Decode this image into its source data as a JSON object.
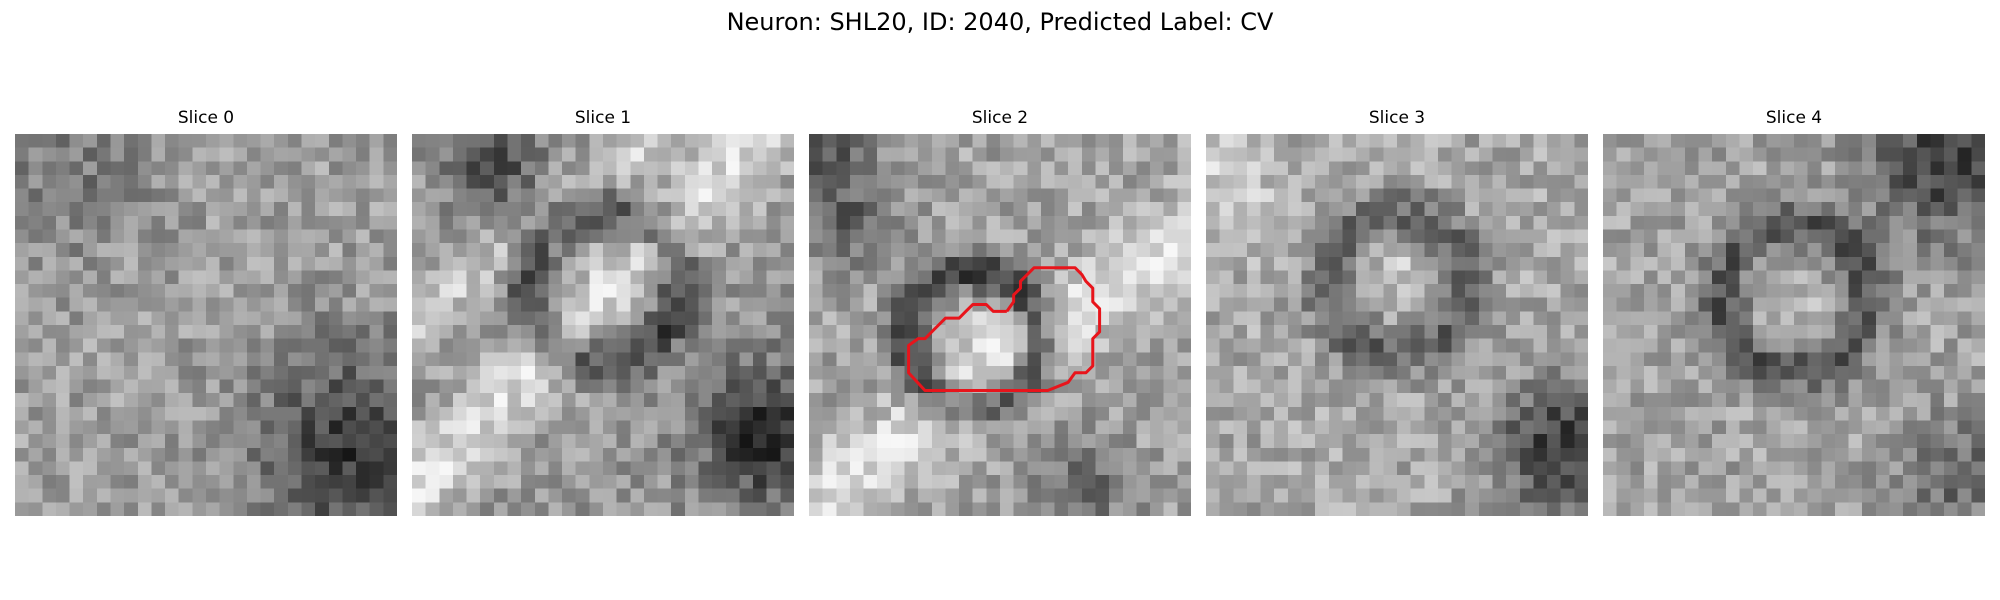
{
  "figure": {
    "title": "Neuron: SHL20, ID: 2040, Predicted Label: CV"
  },
  "slices": [
    {
      "title": "Slice 0",
      "seed": 11,
      "has_contour": false
    },
    {
      "title": "Slice 1",
      "seed": 23,
      "has_contour": false
    },
    {
      "title": "Slice 2",
      "seed": 37,
      "has_contour": true
    },
    {
      "title": "Slice 3",
      "seed": 41,
      "has_contour": false
    },
    {
      "title": "Slice 4",
      "seed": 53,
      "has_contour": false
    }
  ],
  "colors": {
    "contour": "#e8141b",
    "background": "#ffffff"
  }
}
